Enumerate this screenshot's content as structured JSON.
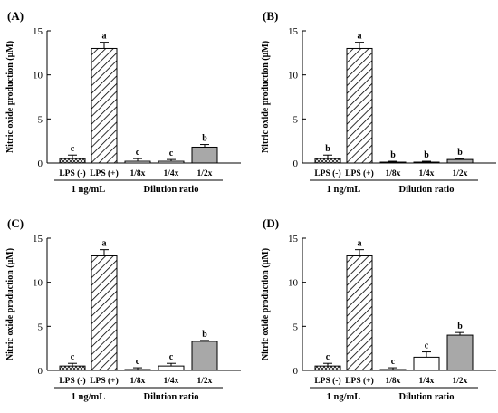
{
  "chart_data": [
    {
      "panel": "(A)",
      "type": "bar",
      "ylabel": "Nitric oxide production (μM)",
      "ylim": [
        0,
        15
      ],
      "yticks": [
        0,
        5,
        10,
        15
      ],
      "categories": [
        "LPS (-)",
        "LPS (+)",
        "1/8x",
        "1/4x",
        "1/2x"
      ],
      "groups": [
        {
          "label": "1 ng/mL",
          "categories": [
            "LPS (-)",
            "LPS (+)"
          ]
        },
        {
          "label": "Dilution ratio",
          "categories": [
            "1/8x",
            "1/4x",
            "1/2x"
          ]
        }
      ],
      "values": [
        0.5,
        13.0,
        0.2,
        0.2,
        1.8
      ],
      "errors": [
        0.4,
        0.7,
        0.3,
        0.2,
        0.3
      ],
      "letters": [
        "c",
        "a",
        "c",
        "c",
        "b"
      ]
    },
    {
      "panel": "(B)",
      "type": "bar",
      "ylabel": "Nitric oxide production (μM)",
      "ylim": [
        0,
        15
      ],
      "yticks": [
        0,
        5,
        10,
        15
      ],
      "categories": [
        "LPS (-)",
        "LPS (+)",
        "1/8x",
        "1/4x",
        "1/2x"
      ],
      "groups": [
        {
          "label": "1 ng/mL",
          "categories": [
            "LPS (-)",
            "LPS (+)"
          ]
        },
        {
          "label": "Dilution ratio",
          "categories": [
            "1/8x",
            "1/4x",
            "1/2x"
          ]
        }
      ],
      "values": [
        0.5,
        13.0,
        0.1,
        0.1,
        0.4
      ],
      "errors": [
        0.4,
        0.7,
        0.1,
        0.1,
        0.1
      ],
      "letters": [
        "b",
        "a",
        "b",
        "b",
        "b"
      ]
    },
    {
      "panel": "(C)",
      "type": "bar",
      "ylabel": "Nitric oxide production (μM)",
      "ylim": [
        0,
        15
      ],
      "yticks": [
        0,
        5,
        10,
        15
      ],
      "categories": [
        "LPS (-)",
        "LPS (+)",
        "1/8x",
        "1/4x",
        "1/2x"
      ],
      "groups": [
        {
          "label": "1 ng/mL",
          "categories": [
            "LPS (-)",
            "LPS (+)"
          ]
        },
        {
          "label": "Dilution ratio",
          "categories": [
            "1/8x",
            "1/4x",
            "1/2x"
          ]
        }
      ],
      "values": [
        0.5,
        13.0,
        0.1,
        0.5,
        3.3
      ],
      "errors": [
        0.3,
        0.7,
        0.2,
        0.3,
        0.1
      ],
      "letters": [
        "c",
        "a",
        "c",
        "c",
        "b"
      ]
    },
    {
      "panel": "(D)",
      "type": "bar",
      "ylabel": "Nitric oxide production (μM)",
      "ylim": [
        0,
        15
      ],
      "yticks": [
        0,
        5,
        10,
        15
      ],
      "categories": [
        "LPS (-)",
        "LPS (+)",
        "1/8x",
        "1/4x",
        "1/2x"
      ],
      "groups": [
        {
          "label": "1 ng/mL",
          "categories": [
            "LPS (-)",
            "LPS (+)"
          ]
        },
        {
          "label": "Dilution ratio",
          "categories": [
            "1/8x",
            "1/4x",
            "1/2x"
          ]
        }
      ],
      "values": [
        0.5,
        13.0,
        0.1,
        1.5,
        4.0
      ],
      "errors": [
        0.3,
        0.7,
        0.2,
        0.6,
        0.3
      ],
      "letters": [
        "c",
        "a",
        "c",
        "c",
        "b"
      ]
    }
  ],
  "bar_styles": [
    "crosshatch",
    "diagonal",
    "white",
    "white",
    "gray"
  ],
  "colors": {
    "gray_fill": "#a8a8a8",
    "ink": "#000000"
  }
}
